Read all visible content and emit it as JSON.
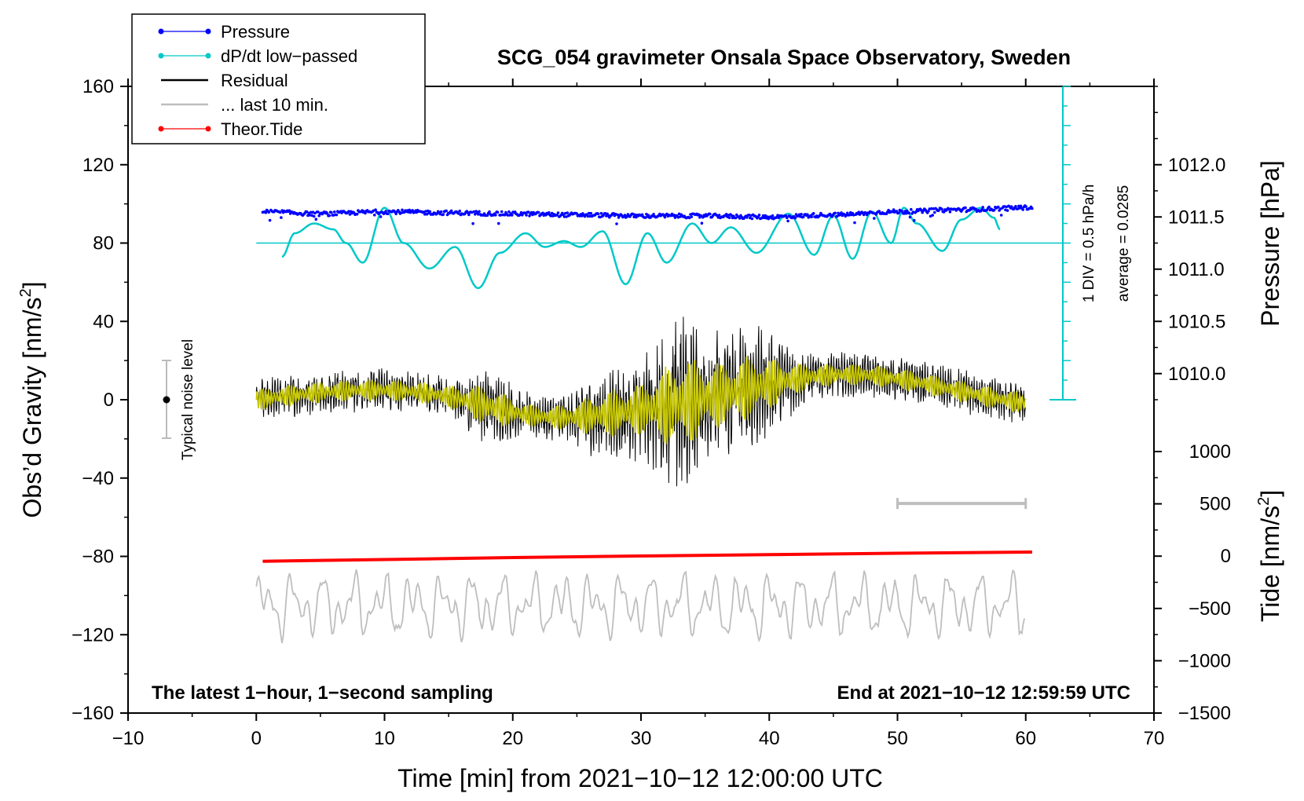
{
  "chart_data": {
    "type": "line",
    "title": "SCG_054 gravimeter Onsala Space Observatory, Sweden",
    "xlabel": "Time [min] from 2021−10−12 12:00:00 UTC",
    "ylabel_left": "Obs’d Gravity [nm/s",
    "ylabel_left_sup": "2",
    "ylabel_left_end": "]",
    "ylabel_right_pressure": "Pressure [hPa]",
    "ylabel_right_tide": "Tide [nm/s",
    "ylabel_right_tide_sup": "2",
    "ylabel_right_tide_end": "]",
    "xlim": [
      -10,
      70
    ],
    "ylim": [
      -160,
      160
    ],
    "x_ticks": [
      {
        "value": -10,
        "label": "−10"
      },
      {
        "value": 0,
        "label": "0"
      },
      {
        "value": 10,
        "label": "10"
      },
      {
        "value": 20,
        "label": "20"
      },
      {
        "value": 30,
        "label": "30"
      },
      {
        "value": 40,
        "label": "40"
      },
      {
        "value": 50,
        "label": "50"
      },
      {
        "value": 60,
        "label": "60"
      },
      {
        "value": 70,
        "label": "70"
      }
    ],
    "y_ticks": [
      {
        "value": 160,
        "label": "160"
      },
      {
        "value": 120,
        "label": "120"
      },
      {
        "value": 80,
        "label": "80"
      },
      {
        "value": 40,
        "label": "40"
      },
      {
        "value": 0,
        "label": "0"
      },
      {
        "value": -40,
        "label": "−40"
      },
      {
        "value": -80,
        "label": "−80"
      },
      {
        "value": -120,
        "label": "−120"
      },
      {
        "value": -160,
        "label": "−160"
      }
    ],
    "pressure_axis": {
      "range": [
        1009.75,
        1012.75
      ],
      "ticks": [
        {
          "value": 1012.0,
          "label": "1012.0"
        },
        {
          "value": 1011.5,
          "label": "1011.5"
        },
        {
          "value": 1011.0,
          "label": "1011.0"
        },
        {
          "value": 1010.5,
          "label": "1010.5"
        },
        {
          "value": 1010.0,
          "label": "1010.0"
        }
      ]
    },
    "tide_axis": {
      "range": [
        -1500,
        1000
      ],
      "ticks": [
        {
          "value": 1000,
          "label": "1000"
        },
        {
          "value": 500,
          "label": "500"
        },
        {
          "value": 0,
          "label": "0"
        },
        {
          "value": -500,
          "label": "−500"
        },
        {
          "value": -1000,
          "label": "−1000"
        },
        {
          "value": -1500,
          "label": "−1500"
        }
      ]
    },
    "legend": [
      {
        "label": "Pressure",
        "color": "#0000ff",
        "marker": "dot"
      },
      {
        "label": "dP/dt low−passed",
        "color": "#00c8c8",
        "marker": "dot"
      },
      {
        "label": "Residual",
        "color": "#000000",
        "marker": "line"
      },
      {
        "label": "... last 10 min.",
        "color": "#bebebe",
        "marker": "line"
      },
      {
        "label": "Theor.Tide",
        "color": "#ff0000",
        "marker": "dot"
      }
    ],
    "legend_position": "top-left",
    "annotations": {
      "noise_label": "Typical noise level",
      "noise_center": 0,
      "noise_halfwidth": 20,
      "scale_div": "1 DIV = 0.5 hPa/h",
      "scale_avg": "average = 0.0285",
      "bottom_left": "The latest 1−hour, 1−second sampling",
      "bottom_right": "End at 2021−10−12 12:59:59 UTC",
      "last10_bar_x": [
        50,
        60
      ],
      "last10_bar_y": -53
    },
    "series": {
      "pressure_hpa": {
        "color": "#0000ff",
        "x": [
          0.5,
          5,
          10,
          15,
          20,
          25,
          30,
          35,
          40,
          45,
          50,
          55,
          60.5
        ],
        "y": [
          1011.55,
          1011.53,
          1011.55,
          1011.54,
          1011.53,
          1011.52,
          1011.51,
          1011.51,
          1011.5,
          1011.52,
          1011.55,
          1011.57,
          1011.59
        ]
      },
      "dpdt_lowpassed": {
        "color": "#00c8c8",
        "baseline": 80,
        "x": [
          2,
          3,
          4.5,
          6,
          7,
          8.3,
          10,
          11.5,
          13.5,
          15.5,
          17.3,
          19,
          21,
          22.5,
          24,
          25.3,
          27,
          28.8,
          30.5,
          32,
          34,
          35.5,
          37,
          39,
          41.5,
          43.5,
          45,
          46.5,
          48,
          49.5,
          50.5,
          51.5,
          53.5,
          55,
          56.5,
          57.5,
          58
        ],
        "y": [
          73,
          85,
          90,
          87,
          80,
          70,
          98,
          80,
          67,
          78,
          57,
          75,
          85,
          78,
          81,
          78,
          86,
          59,
          85,
          70,
          90,
          80,
          88,
          75,
          95,
          74,
          94,
          72,
          96,
          80,
          98,
          90,
          76,
          92,
          98,
          93,
          87
        ]
      },
      "residual": {
        "color": "#000000",
        "x_range": [
          0,
          60
        ]
      },
      "residual_filtered": {
        "color": "#c8c800",
        "x_range": [
          0,
          60
        ]
      },
      "theor_tide": {
        "color": "#ff0000",
        "x": [
          0.5,
          10,
          20,
          30,
          40,
          50,
          60.5
        ],
        "y": [
          -82.5,
          -81.6,
          -80.6,
          -79.8,
          -79.1,
          -78.4,
          -77.8
        ]
      },
      "last_10_min": {
        "color": "#bebebe",
        "x_range": [
          0,
          60
        ]
      }
    }
  }
}
